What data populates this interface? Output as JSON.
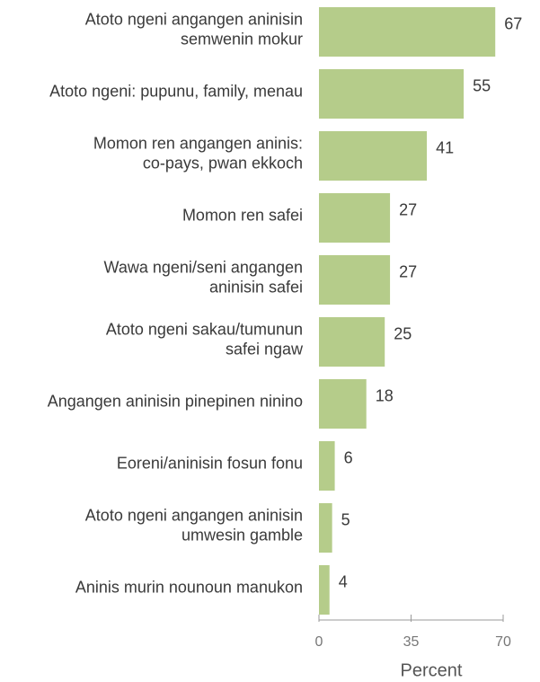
{
  "chart_data": {
    "type": "barh",
    "categories": [
      "Atoto ngeni angangen aninisin\nsemwenin mokur",
      "Atoto ngeni: pupunu, family, menau",
      "Momon ren angangen aninis:\nco-pays, pwan ekkoch",
      "Momon ren safei",
      "Wawa ngeni/seni angangen\naninisin safei",
      "Atoto ngeni sakau/tumunun\nsafei ngaw",
      "Angangen aninisin pinepinen ninino",
      "Eoreni/aninisin fosun fonu",
      "Atoto ngeni angangen aninisin\numwesin gamble",
      "Aninis murin nounoun manukon"
    ],
    "values": [
      67,
      55,
      41,
      27,
      27,
      25,
      18,
      6,
      5,
      4
    ],
    "color": "#b5cc8a",
    "xlim": [
      0,
      70
    ],
    "xticks": [
      0,
      35,
      70
    ],
    "xlabel": "Percent"
  }
}
